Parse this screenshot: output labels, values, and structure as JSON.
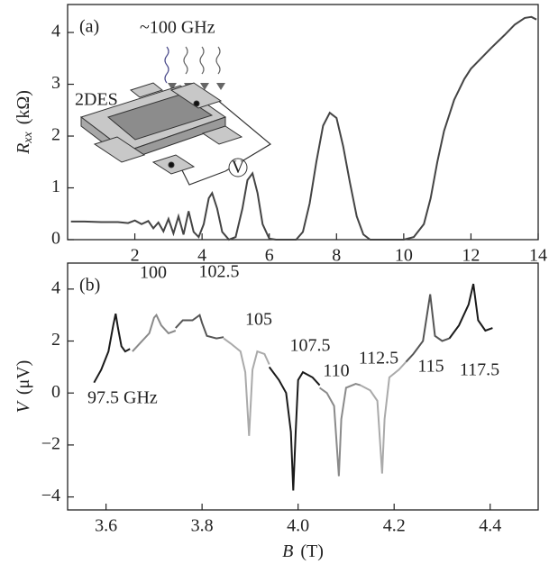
{
  "chart_data": [
    {
      "type": "line",
      "panel_label": "(a)",
      "annotations": [
        "~100 GHz",
        "2DES",
        "V"
      ],
      "y_label_symbol": "R",
      "y_label_subscript": "xx",
      "y_label_unit": "(kΩ)",
      "xlim": [
        0,
        14
      ],
      "xticks": [
        2,
        4,
        6,
        8,
        10,
        12,
        14
      ],
      "ylim": [
        0,
        4.54
      ],
      "yticks": [
        0,
        1,
        2,
        3,
        4
      ],
      "series": [
        {
          "color": "#444444",
          "x": [
            0.1,
            0.5,
            1,
            1.5,
            1.8,
            2.0,
            2.2,
            2.4,
            2.55,
            2.7,
            2.85,
            3.0,
            3.15,
            3.3,
            3.45,
            3.6,
            3.75,
            3.9,
            4.05,
            4.2,
            4.3,
            4.45,
            4.6,
            4.8,
            5.0,
            5.2,
            5.35,
            5.5,
            5.65,
            5.8,
            6.0,
            6.2,
            6.5,
            6.8,
            7.0,
            7.2,
            7.4,
            7.6,
            7.8,
            8.0,
            8.2,
            8.4,
            8.6,
            8.8,
            9.0,
            9.3,
            9.6,
            10.0,
            10.3,
            10.6,
            10.8,
            11.0,
            11.2,
            11.5,
            11.8,
            12.0,
            12.3,
            12.6,
            13.0,
            13.3,
            13.6,
            13.8,
            13.95
          ],
          "values": [
            0.35,
            0.35,
            0.34,
            0.34,
            0.32,
            0.37,
            0.3,
            0.36,
            0.22,
            0.33,
            0.16,
            0.4,
            0.12,
            0.45,
            0.1,
            0.55,
            0.15,
            0.05,
            0.3,
            0.8,
            0.9,
            0.6,
            0.15,
            0.0,
            0.05,
            0.6,
            1.15,
            1.28,
            0.9,
            0.3,
            0.02,
            0,
            0,
            0,
            0.15,
            0.7,
            1.5,
            2.2,
            2.45,
            2.35,
            1.8,
            1.1,
            0.45,
            0.1,
            0,
            0,
            0,
            0,
            0.05,
            0.3,
            0.8,
            1.5,
            2.1,
            2.7,
            3.1,
            3.3,
            3.5,
            3.7,
            3.95,
            4.15,
            4.28,
            4.3,
            4.25
          ]
        }
      ]
    },
    {
      "type": "line",
      "panel_label": "(b)",
      "y_label_symbol": "V",
      "y_label_unit": "(μV)",
      "x_label_symbol": "B",
      "x_label_unit": "(T)",
      "xlim": [
        3.52,
        4.5
      ],
      "xticks": [
        3.6,
        3.8,
        {
          "value": 4,
          "label": "4.0"
        },
        4.2,
        4.4
      ],
      "ylim": [
        -4.5,
        5
      ],
      "yticks": [
        {
          "value": -4,
          "label": "−4"
        },
        {
          "value": -2,
          "label": "−2"
        },
        0,
        2,
        4
      ],
      "series": [
        {
          "name": "97.5 GHz",
          "color": "#1a1a1a",
          "x": [
            3.575,
            3.59,
            3.605,
            3.615,
            3.62,
            3.625,
            3.632,
            3.64,
            3.65
          ],
          "values": [
            0.4,
            0.9,
            1.6,
            2.6,
            3.05,
            2.5,
            1.8,
            1.6,
            1.7
          ]
        },
        {
          "name": "100",
          "color": "#8a8a8a",
          "x": [
            3.655,
            3.67,
            3.69,
            3.7,
            3.705,
            3.715,
            3.73,
            3.745
          ],
          "values": [
            1.6,
            1.9,
            2.3,
            2.9,
            3.0,
            2.6,
            2.3,
            2.4
          ]
        },
        {
          "name": "102.5",
          "color": "#555555",
          "x": [
            3.745,
            3.76,
            3.78,
            3.795,
            3.8,
            3.81,
            3.83,
            3.845
          ],
          "values": [
            2.5,
            2.8,
            2.8,
            3.0,
            2.7,
            2.2,
            2.1,
            2.15
          ]
        },
        {
          "name": "105",
          "color": "#aaaaaa",
          "x": [
            3.845,
            3.86,
            3.88,
            3.89,
            3.898,
            3.905,
            3.915,
            3.93,
            3.94
          ],
          "values": [
            2.1,
            1.9,
            1.6,
            0.8,
            -1.65,
            0.9,
            1.6,
            1.5,
            1.1
          ]
        },
        {
          "name": "107.5",
          "color": "#1a1a1a",
          "x": [
            3.94,
            3.96,
            3.975,
            3.985,
            3.99,
            3.995,
            4.0,
            4.01,
            4.03,
            4.045
          ],
          "values": [
            1.0,
            0.5,
            0.0,
            -1.5,
            -3.75,
            -1.5,
            0.5,
            0.8,
            0.6,
            0.3
          ]
        },
        {
          "name": "110",
          "color": "#8a8a8a",
          "x": [
            4.045,
            4.06,
            4.075,
            4.085,
            4.09,
            4.1,
            4.12,
            4.13
          ],
          "values": [
            0.2,
            0.0,
            -0.5,
            -3.2,
            -1.0,
            0.2,
            0.35,
            0.3
          ]
        },
        {
          "name": "112.5",
          "color": "#aaaaaa",
          "x": [
            4.13,
            4.15,
            4.165,
            4.175,
            4.18,
            4.19,
            4.21,
            4.225
          ],
          "values": [
            0.3,
            0.1,
            -0.3,
            -3.1,
            -1.0,
            0.6,
            0.9,
            1.2
          ]
        },
        {
          "name": "115",
          "color": "#555555",
          "x": [
            4.225,
            4.24,
            4.26,
            4.275,
            4.285,
            4.3,
            4.315
          ],
          "values": [
            1.2,
            1.5,
            2.0,
            3.8,
            2.2,
            2.0,
            2.1
          ]
        },
        {
          "name": "117.5",
          "color": "#1a1a1a",
          "x": [
            4.315,
            4.335,
            4.355,
            4.365,
            4.375,
            4.39,
            4.405
          ],
          "values": [
            2.1,
            2.6,
            3.4,
            4.2,
            2.8,
            2.4,
            2.5
          ]
        }
      ]
    }
  ]
}
